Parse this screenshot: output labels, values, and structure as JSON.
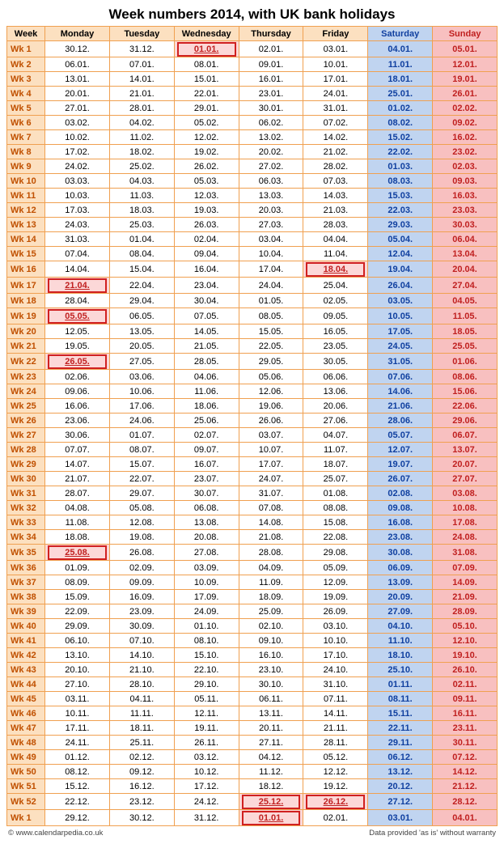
{
  "title": "Week numbers 2014, with UK bank holidays",
  "columns": [
    "Week",
    "Monday",
    "Tuesday",
    "Wednesday",
    "Thursday",
    "Friday",
    "Saturday",
    "Sunday"
  ],
  "colors": {
    "border": "#f0a050",
    "header_bg": "#fce0c0",
    "wk_text": "#c05000",
    "sat_bg": "#c0d4f0",
    "sat_text": "#1040a0",
    "sun_bg": "#f8c0c0",
    "sun_text": "#c02020",
    "hol_bg": "#fcd8d8",
    "hol_border": "#d02020"
  },
  "footer_left": "© www.calendarpedia.co.uk",
  "footer_right": "Data provided 'as is' without warranty",
  "rows": [
    {
      "wk": "Wk 1",
      "d": [
        "30.12.",
        "31.12.",
        {
          "v": "01.01.",
          "h": true
        },
        "02.01.",
        "03.01.",
        "04.01.",
        "05.01."
      ]
    },
    {
      "wk": "Wk 2",
      "d": [
        "06.01.",
        "07.01.",
        "08.01.",
        "09.01.",
        "10.01.",
        "11.01.",
        "12.01."
      ]
    },
    {
      "wk": "Wk 3",
      "d": [
        "13.01.",
        "14.01.",
        "15.01.",
        "16.01.",
        "17.01.",
        "18.01.",
        "19.01."
      ]
    },
    {
      "wk": "Wk 4",
      "d": [
        "20.01.",
        "21.01.",
        "22.01.",
        "23.01.",
        "24.01.",
        "25.01.",
        "26.01."
      ]
    },
    {
      "wk": "Wk 5",
      "d": [
        "27.01.",
        "28.01.",
        "29.01.",
        "30.01.",
        "31.01.",
        "01.02.",
        "02.02."
      ]
    },
    {
      "wk": "Wk 6",
      "d": [
        "03.02.",
        "04.02.",
        "05.02.",
        "06.02.",
        "07.02.",
        "08.02.",
        "09.02."
      ]
    },
    {
      "wk": "Wk 7",
      "d": [
        "10.02.",
        "11.02.",
        "12.02.",
        "13.02.",
        "14.02.",
        "15.02.",
        "16.02."
      ]
    },
    {
      "wk": "Wk 8",
      "d": [
        "17.02.",
        "18.02.",
        "19.02.",
        "20.02.",
        "21.02.",
        "22.02.",
        "23.02."
      ]
    },
    {
      "wk": "Wk 9",
      "d": [
        "24.02.",
        "25.02.",
        "26.02.",
        "27.02.",
        "28.02.",
        "01.03.",
        "02.03."
      ]
    },
    {
      "wk": "Wk 10",
      "d": [
        "03.03.",
        "04.03.",
        "05.03.",
        "06.03.",
        "07.03.",
        "08.03.",
        "09.03."
      ]
    },
    {
      "wk": "Wk 11",
      "d": [
        "10.03.",
        "11.03.",
        "12.03.",
        "13.03.",
        "14.03.",
        "15.03.",
        "16.03."
      ]
    },
    {
      "wk": "Wk 12",
      "d": [
        "17.03.",
        "18.03.",
        "19.03.",
        "20.03.",
        "21.03.",
        "22.03.",
        "23.03."
      ]
    },
    {
      "wk": "Wk 13",
      "d": [
        "24.03.",
        "25.03.",
        "26.03.",
        "27.03.",
        "28.03.",
        "29.03.",
        "30.03."
      ]
    },
    {
      "wk": "Wk 14",
      "d": [
        "31.03.",
        "01.04.",
        "02.04.",
        "03.04.",
        "04.04.",
        "05.04.",
        "06.04."
      ]
    },
    {
      "wk": "Wk 15",
      "d": [
        "07.04.",
        "08.04.",
        "09.04.",
        "10.04.",
        "11.04.",
        "12.04.",
        "13.04."
      ]
    },
    {
      "wk": "Wk 16",
      "d": [
        "14.04.",
        "15.04.",
        "16.04.",
        "17.04.",
        {
          "v": "18.04.",
          "h": true
        },
        "19.04.",
        "20.04."
      ]
    },
    {
      "wk": "Wk 17",
      "d": [
        {
          "v": "21.04.",
          "h": true
        },
        "22.04.",
        "23.04.",
        "24.04.",
        "25.04.",
        "26.04.",
        "27.04."
      ]
    },
    {
      "wk": "Wk 18",
      "d": [
        "28.04.",
        "29.04.",
        "30.04.",
        "01.05.",
        "02.05.",
        "03.05.",
        "04.05."
      ]
    },
    {
      "wk": "Wk 19",
      "d": [
        {
          "v": "05.05.",
          "h": true
        },
        "06.05.",
        "07.05.",
        "08.05.",
        "09.05.",
        "10.05.",
        "11.05."
      ]
    },
    {
      "wk": "Wk 20",
      "d": [
        "12.05.",
        "13.05.",
        "14.05.",
        "15.05.",
        "16.05.",
        "17.05.",
        "18.05."
      ]
    },
    {
      "wk": "Wk 21",
      "d": [
        "19.05.",
        "20.05.",
        "21.05.",
        "22.05.",
        "23.05.",
        "24.05.",
        "25.05."
      ]
    },
    {
      "wk": "Wk 22",
      "d": [
        {
          "v": "26.05.",
          "h": true
        },
        "27.05.",
        "28.05.",
        "29.05.",
        "30.05.",
        "31.05.",
        "01.06."
      ]
    },
    {
      "wk": "Wk 23",
      "d": [
        "02.06.",
        "03.06.",
        "04.06.",
        "05.06.",
        "06.06.",
        "07.06.",
        "08.06."
      ]
    },
    {
      "wk": "Wk 24",
      "d": [
        "09.06.",
        "10.06.",
        "11.06.",
        "12.06.",
        "13.06.",
        "14.06.",
        "15.06."
      ]
    },
    {
      "wk": "Wk 25",
      "d": [
        "16.06.",
        "17.06.",
        "18.06.",
        "19.06.",
        "20.06.",
        "21.06.",
        "22.06."
      ]
    },
    {
      "wk": "Wk 26",
      "d": [
        "23.06.",
        "24.06.",
        "25.06.",
        "26.06.",
        "27.06.",
        "28.06.",
        "29.06."
      ]
    },
    {
      "wk": "Wk 27",
      "d": [
        "30.06.",
        "01.07.",
        "02.07.",
        "03.07.",
        "04.07.",
        "05.07.",
        "06.07."
      ]
    },
    {
      "wk": "Wk 28",
      "d": [
        "07.07.",
        "08.07.",
        "09.07.",
        "10.07.",
        "11.07.",
        "12.07.",
        "13.07."
      ]
    },
    {
      "wk": "Wk 29",
      "d": [
        "14.07.",
        "15.07.",
        "16.07.",
        "17.07.",
        "18.07.",
        "19.07.",
        "20.07."
      ]
    },
    {
      "wk": "Wk 30",
      "d": [
        "21.07.",
        "22.07.",
        "23.07.",
        "24.07.",
        "25.07.",
        "26.07.",
        "27.07."
      ]
    },
    {
      "wk": "Wk 31",
      "d": [
        "28.07.",
        "29.07.",
        "30.07.",
        "31.07.",
        "01.08.",
        "02.08.",
        "03.08."
      ]
    },
    {
      "wk": "Wk 32",
      "d": [
        "04.08.",
        "05.08.",
        "06.08.",
        "07.08.",
        "08.08.",
        "09.08.",
        "10.08."
      ]
    },
    {
      "wk": "Wk 33",
      "d": [
        "11.08.",
        "12.08.",
        "13.08.",
        "14.08.",
        "15.08.",
        "16.08.",
        "17.08."
      ]
    },
    {
      "wk": "Wk 34",
      "d": [
        "18.08.",
        "19.08.",
        "20.08.",
        "21.08.",
        "22.08.",
        "23.08.",
        "24.08."
      ]
    },
    {
      "wk": "Wk 35",
      "d": [
        {
          "v": "25.08.",
          "h": true
        },
        "26.08.",
        "27.08.",
        "28.08.",
        "29.08.",
        "30.08.",
        "31.08."
      ]
    },
    {
      "wk": "Wk 36",
      "d": [
        "01.09.",
        "02.09.",
        "03.09.",
        "04.09.",
        "05.09.",
        "06.09.",
        "07.09."
      ]
    },
    {
      "wk": "Wk 37",
      "d": [
        "08.09.",
        "09.09.",
        "10.09.",
        "11.09.",
        "12.09.",
        "13.09.",
        "14.09."
      ]
    },
    {
      "wk": "Wk 38",
      "d": [
        "15.09.",
        "16.09.",
        "17.09.",
        "18.09.",
        "19.09.",
        "20.09.",
        "21.09."
      ]
    },
    {
      "wk": "Wk 39",
      "d": [
        "22.09.",
        "23.09.",
        "24.09.",
        "25.09.",
        "26.09.",
        "27.09.",
        "28.09."
      ]
    },
    {
      "wk": "Wk 40",
      "d": [
        "29.09.",
        "30.09.",
        "01.10.",
        "02.10.",
        "03.10.",
        "04.10.",
        "05.10."
      ]
    },
    {
      "wk": "Wk 41",
      "d": [
        "06.10.",
        "07.10.",
        "08.10.",
        "09.10.",
        "10.10.",
        "11.10.",
        "12.10."
      ]
    },
    {
      "wk": "Wk 42",
      "d": [
        "13.10.",
        "14.10.",
        "15.10.",
        "16.10.",
        "17.10.",
        "18.10.",
        "19.10."
      ]
    },
    {
      "wk": "Wk 43",
      "d": [
        "20.10.",
        "21.10.",
        "22.10.",
        "23.10.",
        "24.10.",
        "25.10.",
        "26.10."
      ]
    },
    {
      "wk": "Wk 44",
      "d": [
        "27.10.",
        "28.10.",
        "29.10.",
        "30.10.",
        "31.10.",
        "01.11.",
        "02.11."
      ]
    },
    {
      "wk": "Wk 45",
      "d": [
        "03.11.",
        "04.11.",
        "05.11.",
        "06.11.",
        "07.11.",
        "08.11.",
        "09.11."
      ]
    },
    {
      "wk": "Wk 46",
      "d": [
        "10.11.",
        "11.11.",
        "12.11.",
        "13.11.",
        "14.11.",
        "15.11.",
        "16.11."
      ]
    },
    {
      "wk": "Wk 47",
      "d": [
        "17.11.",
        "18.11.",
        "19.11.",
        "20.11.",
        "21.11.",
        "22.11.",
        "23.11."
      ]
    },
    {
      "wk": "Wk 48",
      "d": [
        "24.11.",
        "25.11.",
        "26.11.",
        "27.11.",
        "28.11.",
        "29.11.",
        "30.11."
      ]
    },
    {
      "wk": "Wk 49",
      "d": [
        "01.12.",
        "02.12.",
        "03.12.",
        "04.12.",
        "05.12.",
        "06.12.",
        "07.12."
      ]
    },
    {
      "wk": "Wk 50",
      "d": [
        "08.12.",
        "09.12.",
        "10.12.",
        "11.12.",
        "12.12.",
        "13.12.",
        "14.12."
      ]
    },
    {
      "wk": "Wk 51",
      "d": [
        "15.12.",
        "16.12.",
        "17.12.",
        "18.12.",
        "19.12.",
        "20.12.",
        "21.12."
      ]
    },
    {
      "wk": "Wk 52",
      "d": [
        "22.12.",
        "23.12.",
        "24.12.",
        {
          "v": "25.12.",
          "h": true
        },
        {
          "v": "26.12.",
          "h": true
        },
        "27.12.",
        "28.12."
      ]
    },
    {
      "wk": "Wk 1",
      "d": [
        "29.12.",
        "30.12.",
        "31.12.",
        {
          "v": "01.01.",
          "h": true
        },
        "02.01.",
        "03.01.",
        "04.01."
      ]
    }
  ]
}
